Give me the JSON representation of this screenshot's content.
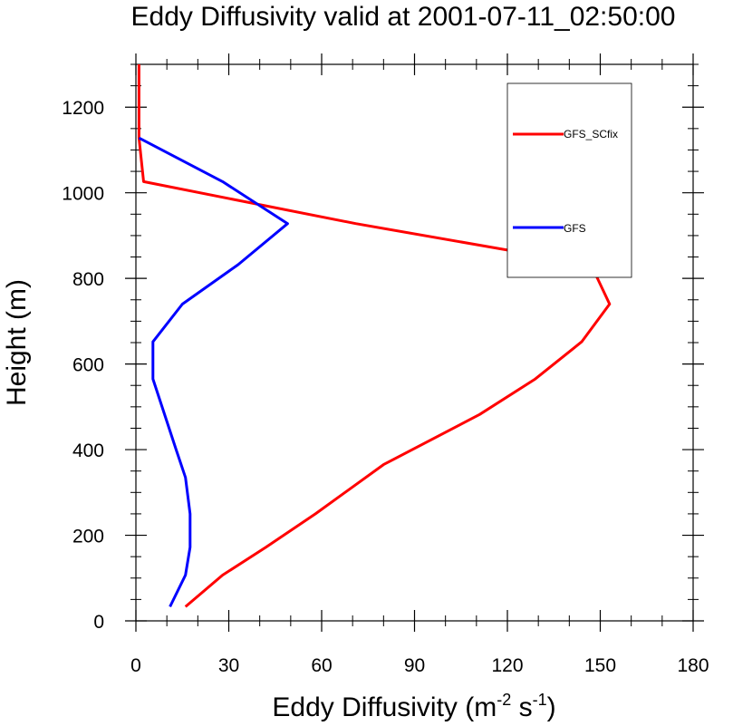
{
  "chart_data": {
    "type": "line",
    "title": "Eddy Diffusivity valid at 2001-07-11_02:50:00",
    "xlabel": {
      "base": "Eddy Diffusivity (m",
      "sup1": "-2",
      "mid": " s",
      "sup2": "-1",
      "end": ")"
    },
    "ylabel": "Height (m)",
    "xlim": [
      0,
      180
    ],
    "ylim": [
      0,
      1300
    ],
    "xticks": [
      0,
      30,
      60,
      90,
      120,
      150,
      180
    ],
    "yticks": [
      0,
      200,
      400,
      600,
      800,
      1000,
      1200
    ],
    "legend_position": "top-right",
    "series": [
      {
        "name": "GFS_SCfix",
        "color": "#ff0000",
        "x": [
          16,
          28,
          42,
          58,
          80,
          111,
          129,
          144,
          153,
          147,
          71,
          2.5,
          1,
          1,
          1,
          1
        ],
        "y": [
          33,
          107,
          172,
          250,
          365,
          482,
          565,
          652,
          740,
          832,
          928,
          1026,
          1128,
          1200,
          1260,
          1300
        ]
      },
      {
        "name": "GFS",
        "color": "#0000ff",
        "x": [
          11,
          16,
          17.5,
          17.5,
          16,
          13,
          5.5,
          5.5,
          15,
          33,
          49,
          28,
          1
        ],
        "y": [
          33,
          107,
          172,
          250,
          335,
          400,
          565,
          652,
          740,
          832,
          928,
          1026,
          1128
        ]
      }
    ]
  }
}
